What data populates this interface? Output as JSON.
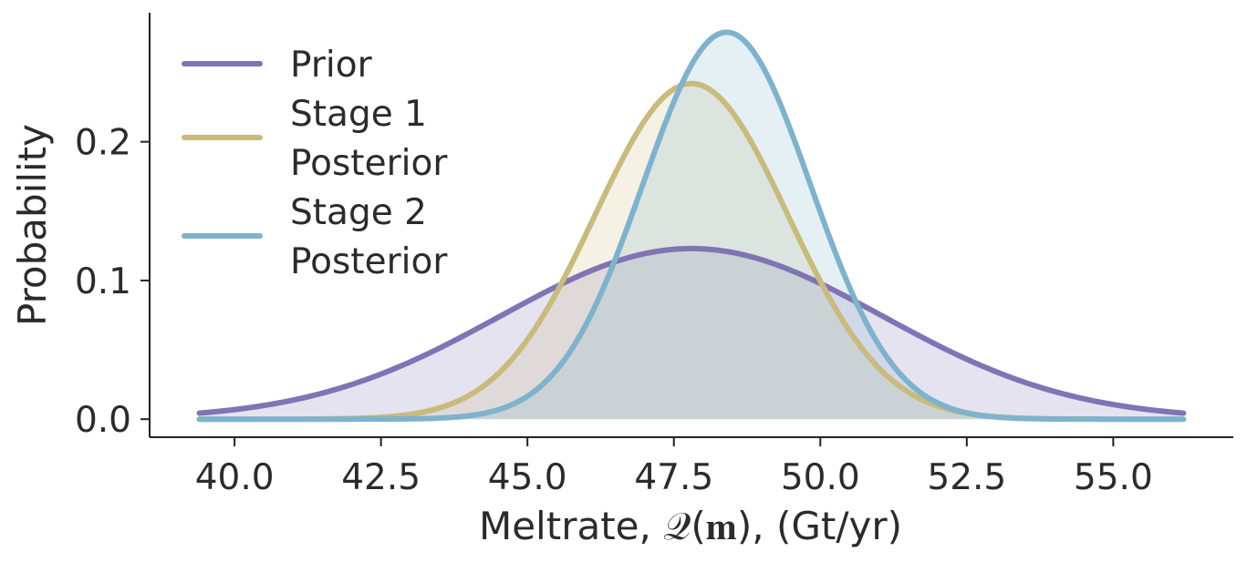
{
  "chart_data": {
    "type": "area",
    "xlabel": "Meltrate, 𝒬(𝐦), (Gt/yr)",
    "ylabel": "Probability",
    "xlim": [
      38.55,
      57.05
    ],
    "ylim": [
      -0.013,
      0.293
    ],
    "xticks": [
      40.0,
      42.5,
      45.0,
      47.5,
      50.0,
      52.5,
      55.0
    ],
    "xtick_labels": [
      "40.0",
      "42.5",
      "45.0",
      "47.5",
      "50.0",
      "52.5",
      "55.0"
    ],
    "yticks": [
      0.0,
      0.1,
      0.2
    ],
    "ytick_labels": [
      "0.0",
      "0.1",
      "0.2"
    ],
    "x_range": [
      39.4,
      56.2
    ],
    "grid": false,
    "legend_position": "top-left",
    "series": [
      {
        "name": "Prior",
        "color": "#7f74b4",
        "fill": "#e4e1f0",
        "distribution": "normal",
        "mean": 47.8,
        "std": 3.25,
        "peak": 0.123
      },
      {
        "name": "Stage 1\nPosterior",
        "color": "#c9ba7d",
        "fill": "#efecd8",
        "distribution": "normal",
        "mean": 47.8,
        "std": 1.65,
        "peak": 0.242
      },
      {
        "name": "Stage 2\nPosterior",
        "color": "#7fb2cc",
        "fill": "#d6e6f0",
        "distribution": "normal",
        "mean": 48.4,
        "std": 1.43,
        "peak": 0.279
      }
    ]
  }
}
